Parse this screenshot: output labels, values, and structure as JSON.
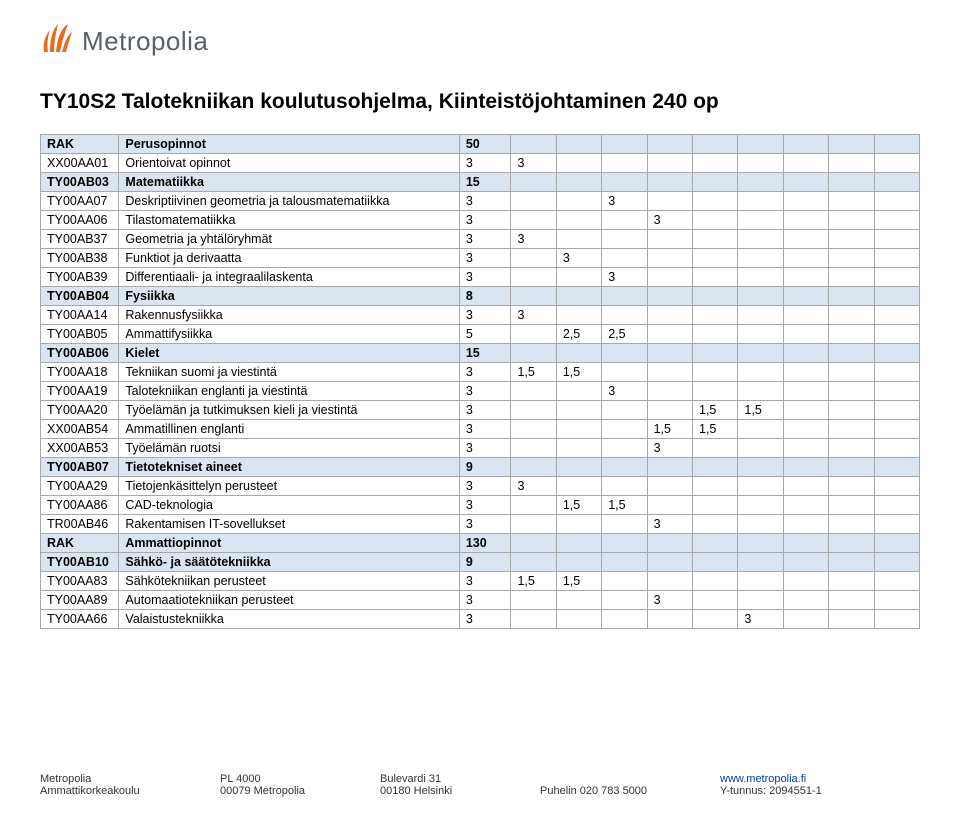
{
  "logo": {
    "text": "Metropolia",
    "mark_color": "#e86a1f"
  },
  "title": "TY10S2 Talotekniikan koulutusohjelma, Kiinteistöjohtaminen 240 op",
  "table": {
    "header_bg": "#dbe5f1",
    "border_color": "#a8a8a8",
    "num_value_cols": 9,
    "rows": [
      {
        "hdr": true,
        "code": "RAK",
        "name": "Perusopinnot",
        "credits": "50",
        "vals": [
          "",
          "",
          "",
          "",
          "",
          "",
          "",
          "",
          ""
        ]
      },
      {
        "hdr": false,
        "code": "XX00AA01",
        "name": "Orientoivat opinnot",
        "credits": "3",
        "vals": [
          "3",
          "",
          "",
          "",
          "",
          "",
          "",
          "",
          ""
        ]
      },
      {
        "hdr": true,
        "code": "TY00AB03",
        "name": "Matematiikka",
        "credits": "15",
        "vals": [
          "",
          "",
          "",
          "",
          "",
          "",
          "",
          "",
          ""
        ]
      },
      {
        "hdr": false,
        "code": "TY00AA07",
        "name": "Deskriptiivinen geometria ja talousmatematiikka",
        "credits": "3",
        "vals": [
          "",
          "",
          "3",
          "",
          "",
          "",
          "",
          "",
          ""
        ]
      },
      {
        "hdr": false,
        "code": "TY00AA06",
        "name": "Tilastomatematiikka",
        "credits": "3",
        "vals": [
          "",
          "",
          "",
          "3",
          "",
          "",
          "",
          "",
          ""
        ]
      },
      {
        "hdr": false,
        "code": "TY00AB37",
        "name": "Geometria ja yhtälöryhmät",
        "credits": "3",
        "vals": [
          "3",
          "",
          "",
          "",
          "",
          "",
          "",
          "",
          ""
        ]
      },
      {
        "hdr": false,
        "code": "TY00AB38",
        "name": "Funktiot ja derivaatta",
        "credits": "3",
        "vals": [
          "",
          "3",
          "",
          "",
          "",
          "",
          "",
          "",
          ""
        ]
      },
      {
        "hdr": false,
        "code": "TY00AB39",
        "name": "Differentiaali- ja integraalilaskenta",
        "credits": "3",
        "vals": [
          "",
          "",
          "3",
          "",
          "",
          "",
          "",
          "",
          ""
        ]
      },
      {
        "hdr": true,
        "code": "TY00AB04",
        "name": "Fysiikka",
        "credits": "8",
        "vals": [
          "",
          "",
          "",
          "",
          "",
          "",
          "",
          "",
          ""
        ]
      },
      {
        "hdr": false,
        "code": "TY00AA14",
        "name": "Rakennusfysiikka",
        "credits": "3",
        "vals": [
          "3",
          "",
          "",
          "",
          "",
          "",
          "",
          "",
          ""
        ]
      },
      {
        "hdr": false,
        "code": "TY00AB05",
        "name": "Ammattifysiikka",
        "credits": "5",
        "vals": [
          "",
          "2,5",
          "2,5",
          "",
          "",
          "",
          "",
          "",
          ""
        ]
      },
      {
        "hdr": true,
        "code": "TY00AB06",
        "name": "Kielet",
        "credits": "15",
        "vals": [
          "",
          "",
          "",
          "",
          "",
          "",
          "",
          "",
          ""
        ]
      },
      {
        "hdr": false,
        "code": "TY00AA18",
        "name": "Tekniikan suomi ja viestintä",
        "credits": "3",
        "vals": [
          "1,5",
          "1,5",
          "",
          "",
          "",
          "",
          "",
          "",
          ""
        ]
      },
      {
        "hdr": false,
        "code": "TY00AA19",
        "name": "Talotekniikan englanti ja viestintä",
        "credits": "3",
        "vals": [
          "",
          "",
          "3",
          "",
          "",
          "",
          "",
          "",
          ""
        ]
      },
      {
        "hdr": false,
        "code": "TY00AA20",
        "name": "Työelämän ja tutkimuksen kieli ja viestintä",
        "credits": "3",
        "vals": [
          "",
          "",
          "",
          "",
          "1,5",
          "1,5",
          "",
          "",
          ""
        ]
      },
      {
        "hdr": false,
        "code": "XX00AB54",
        "name": "Ammatillinen englanti",
        "credits": "3",
        "vals": [
          "",
          "",
          "",
          "1,5",
          "1,5",
          "",
          "",
          "",
          ""
        ]
      },
      {
        "hdr": false,
        "code": "XX00AB53",
        "name": "Työelämän ruotsi",
        "credits": "3",
        "vals": [
          "",
          "",
          "",
          "3",
          "",
          "",
          "",
          "",
          ""
        ]
      },
      {
        "hdr": true,
        "code": "TY00AB07",
        "name": "Tietotekniset aineet",
        "credits": "9",
        "vals": [
          "",
          "",
          "",
          "",
          "",
          "",
          "",
          "",
          ""
        ]
      },
      {
        "hdr": false,
        "code": "TY00AA29",
        "name": "Tietojenkäsittelyn perusteet",
        "credits": "3",
        "vals": [
          "3",
          "",
          "",
          "",
          "",
          "",
          "",
          "",
          ""
        ]
      },
      {
        "hdr": false,
        "code": "TY00AA86",
        "name": "CAD-teknologia",
        "credits": "3",
        "vals": [
          "",
          "1,5",
          "1,5",
          "",
          "",
          "",
          "",
          "",
          ""
        ]
      },
      {
        "hdr": false,
        "code": "TR00AB46",
        "name": "Rakentamisen IT-sovellukset",
        "credits": "3",
        "vals": [
          "",
          "",
          "",
          "3",
          "",
          "",
          "",
          "",
          ""
        ]
      },
      {
        "hdr": true,
        "code": "RAK",
        "name": "Ammattiopinnot",
        "credits": "130",
        "vals": [
          "",
          "",
          "",
          "",
          "",
          "",
          "",
          "",
          ""
        ]
      },
      {
        "hdr": true,
        "code": "TY00AB10",
        "name": "Sähkö- ja säätötekniikka",
        "credits": "9",
        "vals": [
          "",
          "",
          "",
          "",
          "",
          "",
          "",
          "",
          ""
        ]
      },
      {
        "hdr": false,
        "code": "TY00AA83",
        "name": "Sähkötekniikan perusteet",
        "credits": "3",
        "vals": [
          "1,5",
          "1,5",
          "",
          "",
          "",
          "",
          "",
          "",
          ""
        ]
      },
      {
        "hdr": false,
        "code": "TY00AA89",
        "name": "Automaatiotekniikan perusteet",
        "credits": "3",
        "vals": [
          "",
          "",
          "",
          "3",
          "",
          "",
          "",
          "",
          ""
        ]
      },
      {
        "hdr": false,
        "code": "TY00AA66",
        "name": "Valaistustekniikka",
        "credits": "3",
        "vals": [
          "",
          "",
          "",
          "",
          "",
          "3",
          "",
          "",
          ""
        ]
      }
    ]
  },
  "footer": {
    "line1": {
      "c1": "Metropolia",
      "c2": "PL 4000",
      "c3": "Bulevardi 31",
      "c4": "",
      "c5": "www.metropolia.fi"
    },
    "line2": {
      "c1": "Ammattikorkeakoulu",
      "c2": "00079 Metropolia",
      "c3": "00180 Helsinki",
      "c4": "Puhelin 020 783 5000",
      "c5": "Y-tunnus: 2094551-1"
    }
  }
}
